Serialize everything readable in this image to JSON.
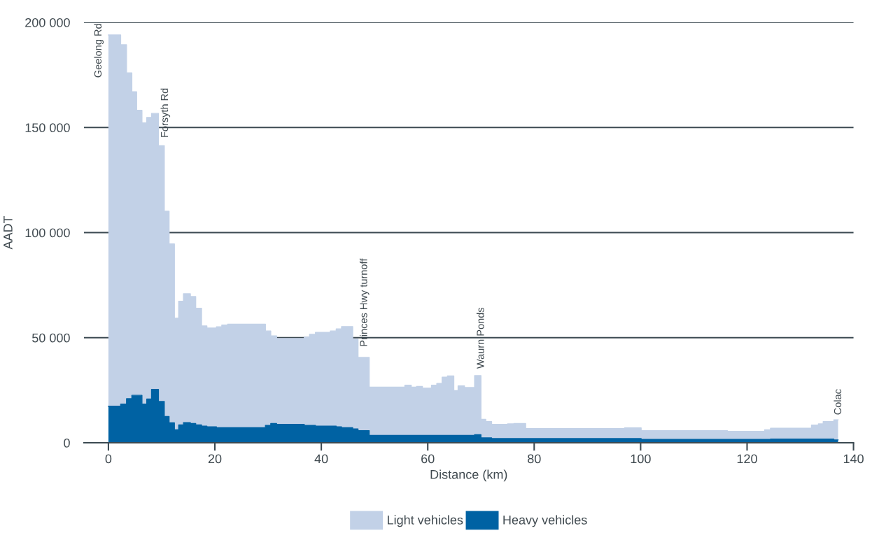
{
  "chart_data": {
    "type": "area",
    "stacked": true,
    "xlabel": "Distance (km)",
    "ylabel": "AADT",
    "x": [
      0,
      2.3,
      2.3,
      3.4,
      3.4,
      4.4,
      4.4,
      5.3,
      5.3,
      6.3,
      6.3,
      7.2,
      7.2,
      8.1,
      8.1,
      9.4,
      9.4,
      10.5,
      10.5,
      11.4,
      11.4,
      12.4,
      12.4,
      13.2,
      13.2,
      14.1,
      14.1,
      15.4,
      15.4,
      16.4,
      16.4,
      17.5,
      17.5,
      18.5,
      18.5,
      20.3,
      20.3,
      21.3,
      21.3,
      22.4,
      22.4,
      29.5,
      29.5,
      30.5,
      30.5,
      31.6,
      31.6,
      36.8,
      36.8,
      37.8,
      37.8,
      38.9,
      38.9,
      41.7,
      41.7,
      42.8,
      42.8,
      43.8,
      43.8,
      45.9,
      45.9,
      46.9,
      46.9,
      49.0,
      49.0,
      55.7,
      55.7,
      56.9,
      56.9,
      57.9,
      57.9,
      59.0,
      59.0,
      60.7,
      60.7,
      61.7,
      61.7,
      62.7,
      62.7,
      63.7,
      63.7,
      64.9,
      64.9,
      65.7,
      65.7,
      66.9,
      66.9,
      68.8,
      68.8,
      70.0,
      70.0,
      70.9,
      70.9,
      72.0,
      72.0,
      75.0,
      75.0,
      76.2,
      76.2,
      78.4,
      78.4,
      97.0,
      97.0,
      100.1,
      100.1,
      116.3,
      116.3,
      123.3,
      123.3,
      124.4,
      124.4,
      132.1,
      132.1,
      133.4,
      133.4,
      134.3,
      134.3,
      136.3,
      136.3,
      137.1
    ],
    "series": [
      {
        "name": "Heavy vehicles",
        "color": "#0062a3",
        "values": [
          17400,
          17400,
          18400,
          18400,
          21000,
          21000,
          22600,
          22600,
          22600,
          22600,
          18400,
          18400,
          20800,
          20800,
          25400,
          25400,
          19700,
          19700,
          12500,
          12500,
          9500,
          9500,
          6200,
          6200,
          8500,
          8500,
          9600,
          9600,
          9200,
          9200,
          8500,
          8500,
          7900,
          7900,
          7600,
          7600,
          7200,
          7200,
          7200,
          7200,
          7200,
          7200,
          8300,
          8300,
          9200,
          9200,
          8800,
          8800,
          8300,
          8300,
          8300,
          8300,
          7900,
          7900,
          7900,
          7900,
          7600,
          7600,
          7200,
          7200,
          6600,
          6600,
          5800,
          5800,
          3500,
          3500,
          3500,
          3500,
          3500,
          3500,
          3500,
          3500,
          3500,
          3500,
          3500,
          3500,
          3500,
          3500,
          3500,
          3500,
          3500,
          3500,
          3500,
          3500,
          3500,
          3500,
          3500,
          3500,
          3900,
          3900,
          2400,
          2400,
          2400,
          2400,
          2000,
          2000,
          2000,
          2000,
          2000,
          2000,
          2000,
          2000,
          2000,
          2000,
          1600,
          1600,
          1600,
          1600,
          1600,
          1600,
          1800,
          1800,
          1800,
          1800,
          1800,
          1800,
          1800,
          1800,
          1400,
          1400
        ]
      },
      {
        "name": "Light vehicles",
        "color": "#c2d1e7",
        "values": [
          176600,
          176600,
          171000,
          171000,
          155000,
          155000,
          144400,
          144400,
          135600,
          135600,
          133800,
          133800,
          134000,
          134000,
          131300,
          131300,
          121700,
          121700,
          97700,
          97700,
          85100,
          85100,
          53100,
          53100,
          58800,
          58800,
          61300,
          61300,
          60400,
          60400,
          55500,
          55500,
          47700,
          47700,
          47000,
          47000,
          48000,
          48000,
          48800,
          48800,
          49200,
          49200,
          44900,
          44900,
          41700,
          41700,
          40800,
          40800,
          42000,
          42000,
          43300,
          43300,
          44600,
          44600,
          45300,
          45300,
          46600,
          46600,
          48100,
          48100,
          42700,
          42700,
          34800,
          34800,
          23000,
          23000,
          23900,
          23900,
          23000,
          23000,
          23300,
          23300,
          22500,
          22500,
          23900,
          23900,
          24700,
          24700,
          27700,
          27700,
          28300,
          28300,
          21300,
          21300,
          23600,
          23600,
          22800,
          22800,
          28100,
          28100,
          8800,
          8800,
          7700,
          7700,
          6800,
          6800,
          7000,
          7000,
          7200,
          7200,
          4800,
          4800,
          5100,
          5100,
          4200,
          4200,
          3800,
          3800,
          4600,
          4600,
          5100,
          5100,
          6600,
          6600,
          7200,
          7200,
          8300,
          8300,
          9500,
          9500
        ]
      }
    ],
    "xlim": [
      -4.6,
      140
    ],
    "xticks": [
      0,
      20,
      40,
      60,
      80,
      100,
      120,
      140
    ],
    "ylim": [
      0,
      200000
    ],
    "yticks": [
      {
        "value": 0,
        "label": "0"
      },
      {
        "value": 50000,
        "label": "50 000"
      },
      {
        "value": 100000,
        "label": "100 000"
      },
      {
        "value": 150000,
        "label": "150 000"
      },
      {
        "value": 200000,
        "label": "200 000"
      }
    ],
    "grid": "y",
    "legend": "bottom",
    "annotations": [
      {
        "text": "Geelong Rd",
        "x": 0,
        "y": 194000
      },
      {
        "text": "Forsyth Rd",
        "x": 10.5,
        "y": 141400
      },
      {
        "text": "Princes Hwy turnoff",
        "x": 49.0,
        "y": 40600
      },
      {
        "text": "Waurn Ponds",
        "x": 68.8,
        "y": 32000
      },
      {
        "text": "Colac",
        "x": 136.3,
        "y": 10900
      }
    ]
  }
}
